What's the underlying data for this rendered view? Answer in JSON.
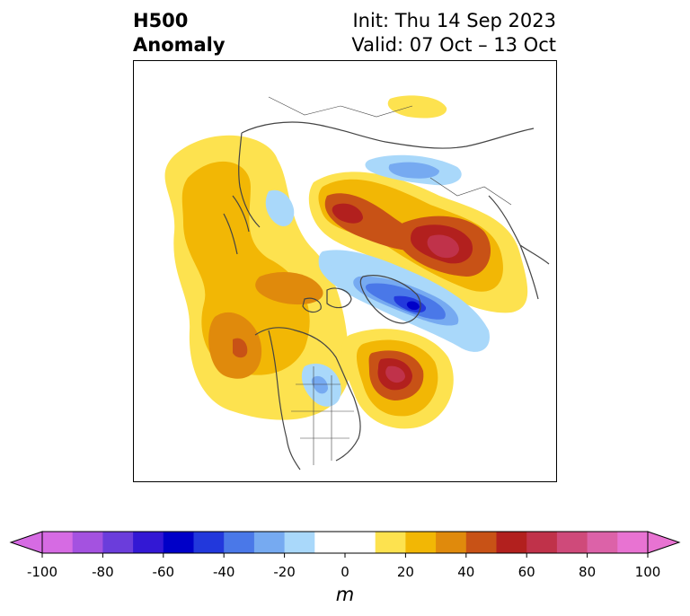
{
  "title": {
    "left_line1": "H500",
    "left_line2": "Anomaly",
    "right_line1": "Init: Thu 14 Sep 2023",
    "right_line2": "Valid: 07 Oct – 13 Oct"
  },
  "colorbar": {
    "unit": "m",
    "tick_labels": [
      "-100",
      "-80",
      "-60",
      "-40",
      "-20",
      "0",
      "20",
      "40",
      "60",
      "80",
      "100"
    ],
    "bins": [
      {
        "from": -100,
        "to": -90,
        "color": "#d66be3"
      },
      {
        "from": -90,
        "to": -80,
        "color": "#a452e0"
      },
      {
        "from": -80,
        "to": -70,
        "color": "#6b3ddb"
      },
      {
        "from": -70,
        "to": -60,
        "color": "#3318d4"
      },
      {
        "from": -60,
        "to": -50,
        "color": "#0000c8"
      },
      {
        "from": -50,
        "to": -40,
        "color": "#2238dc"
      },
      {
        "from": -40,
        "to": -30,
        "color": "#4a78e8"
      },
      {
        "from": -30,
        "to": -20,
        "color": "#76aaf1"
      },
      {
        "from": -20,
        "to": -10,
        "color": "#a9d8fa"
      },
      {
        "from": -10,
        "to": 10,
        "color": "#ffffff"
      },
      {
        "from": 10,
        "to": 20,
        "color": "#fde24f"
      },
      {
        "from": 20,
        "to": 30,
        "color": "#f2b705"
      },
      {
        "from": 30,
        "to": 40,
        "color": "#e08a0c"
      },
      {
        "from": 40,
        "to": 50,
        "color": "#c85216"
      },
      {
        "from": 50,
        "to": 60,
        "color": "#b2201e"
      },
      {
        "from": 60,
        "to": 70,
        "color": "#c0324a"
      },
      {
        "from": 70,
        "to": 80,
        "color": "#cf4a7a"
      },
      {
        "from": 80,
        "to": 90,
        "color": "#dc62a8"
      },
      {
        "from": 90,
        "to": 100,
        "color": "#e873d2"
      }
    ],
    "extend_min_color": "#d66be3",
    "extend_max_color": "#e873d2"
  }
}
